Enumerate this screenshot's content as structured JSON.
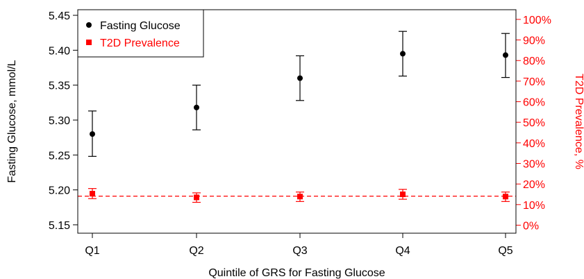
{
  "chart_data": {
    "type": "scatter",
    "categories": [
      "Q1",
      "Q2",
      "Q3",
      "Q4",
      "Q5"
    ],
    "xlabel": "Quintile of GRS for Fasting Glucose",
    "ylabel_left": "Fasting Glucose, mmol/L",
    "ylabel_right": "T2D Prevalence, %",
    "y_left": {
      "ticks": [
        "5.15",
        "5.20",
        "5.25",
        "5.30",
        "5.35",
        "5.40",
        "5.45"
      ],
      "tick_values": [
        5.15,
        5.2,
        5.25,
        5.3,
        5.35,
        5.4,
        5.45
      ],
      "range": [
        5.138,
        5.458
      ]
    },
    "y_right": {
      "ticks": [
        "0%",
        "10%",
        "20%",
        "30%",
        "40%",
        "50%",
        "60%",
        "70%",
        "80%",
        "90%",
        "100%"
      ],
      "tick_values": [
        0,
        10,
        20,
        30,
        40,
        50,
        60,
        70,
        80,
        90,
        100
      ],
      "range": [
        -3.9,
        104.7
      ]
    },
    "reference_line": {
      "axis": "right",
      "value": 14.1,
      "style": "dashed",
      "color": "#ff0000"
    },
    "legend": {
      "position": "top-left",
      "entries": [
        {
          "label": "Fasting Glucose",
          "color": "#000000",
          "marker": "circle"
        },
        {
          "label": "T2D Prevalence",
          "color": "#ff0000",
          "marker": "square"
        }
      ]
    },
    "series": [
      {
        "name": "Fasting Glucose",
        "axis": "left",
        "color": "#000000",
        "marker": "circle",
        "values": [
          5.28,
          5.318,
          5.36,
          5.395,
          5.393
        ],
        "lower": [
          5.248,
          5.286,
          5.328,
          5.363,
          5.361
        ],
        "upper": [
          5.313,
          5.35,
          5.392,
          5.427,
          5.424
        ]
      },
      {
        "name": "T2D Prevalence",
        "axis": "right",
        "color": "#ff0000",
        "marker": "square",
        "values": [
          15.3,
          13.5,
          13.9,
          15.0,
          13.9
        ],
        "lower": [
          12.9,
          11.1,
          11.5,
          12.6,
          11.5
        ],
        "upper": [
          17.8,
          15.7,
          16.1,
          17.4,
          16.1
        ]
      }
    ]
  }
}
